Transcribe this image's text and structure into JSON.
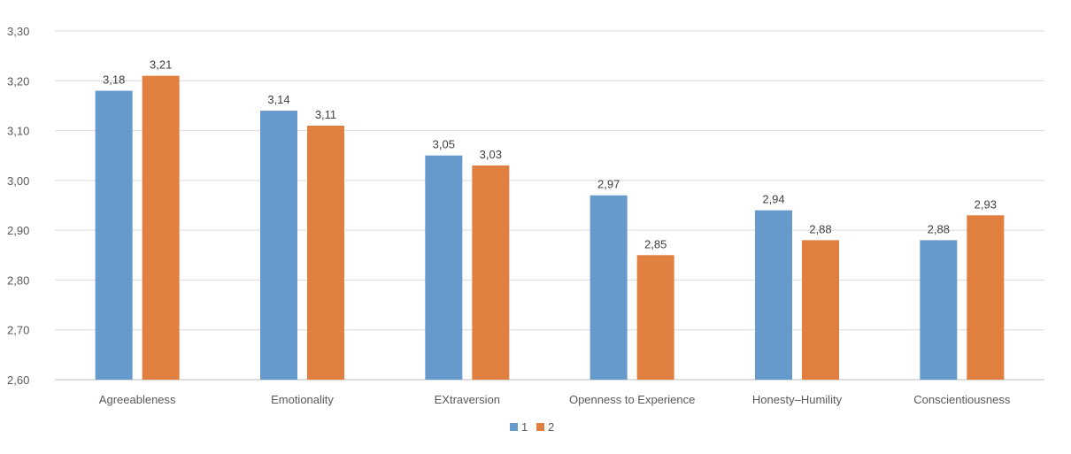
{
  "chart_data": {
    "type": "bar",
    "title": "",
    "xlabel": "",
    "ylabel": "",
    "categories": [
      "Agreeableness",
      "Emotionality",
      "EXtraversion",
      "Openness to Experience",
      "Honesty–Humility",
      "Conscientiousness"
    ],
    "series": [
      {
        "name": "1",
        "color": "#6699CC",
        "values": [
          3.18,
          3.14,
          3.05,
          2.97,
          2.94,
          2.88
        ]
      },
      {
        "name": "2",
        "color": "#E07F3F",
        "values": [
          3.21,
          3.11,
          3.03,
          2.85,
          2.88,
          2.93
        ]
      }
    ],
    "data_labels": [
      [
        "3,18",
        "3,14",
        "3,05",
        "2,97",
        "2,94",
        "2,88"
      ],
      [
        "3,21",
        "3,11",
        "3,03",
        "2,85",
        "2,88",
        "2,93"
      ]
    ],
    "ylim": [
      2.6,
      3.3
    ],
    "y_ticks": [
      2.6,
      2.7,
      2.8,
      2.9,
      3.0,
      3.1,
      3.2,
      3.3
    ],
    "y_tick_labels": [
      "2,60",
      "2,70",
      "2,80",
      "2,90",
      "3,00",
      "3,10",
      "3,20",
      "3,30"
    ],
    "grid": true,
    "legend_position": "bottom"
  }
}
